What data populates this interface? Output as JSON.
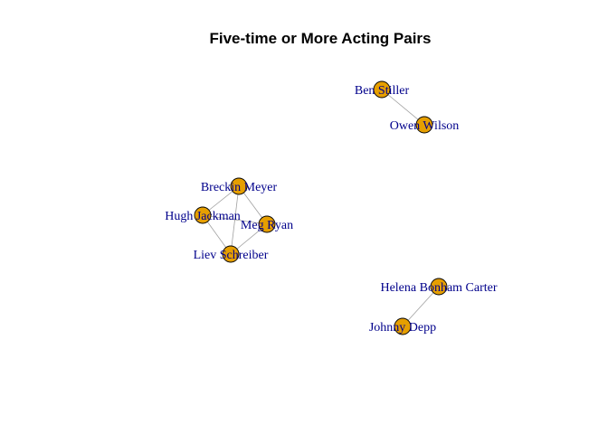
{
  "title": "Five-time or More Acting Pairs",
  "colors": {
    "node_fill": "#E69F00",
    "node_stroke": "#000000",
    "edge": "#a0a0a0",
    "label": "#00008B",
    "title": "#000000"
  },
  "nodes": [
    {
      "id": "ben-stiller",
      "label": "Ben Stiller"
    },
    {
      "id": "owen-wilson",
      "label": "Owen Wilson"
    },
    {
      "id": "breckin-meyer",
      "label": "Breckin Meyer"
    },
    {
      "id": "hugh-jackman",
      "label": "Hugh Jackman"
    },
    {
      "id": "meg-ryan",
      "label": "Meg Ryan"
    },
    {
      "id": "liev-schreiber",
      "label": "Liev Schreiber"
    },
    {
      "id": "helena-bonham-carter",
      "label": "Helena Bonham Carter"
    },
    {
      "id": "johnny-depp",
      "label": "Johnny Depp"
    }
  ],
  "edges": [
    [
      "ben-stiller",
      "owen-wilson"
    ],
    [
      "breckin-meyer",
      "hugh-jackman"
    ],
    [
      "breckin-meyer",
      "meg-ryan"
    ],
    [
      "breckin-meyer",
      "liev-schreiber"
    ],
    [
      "hugh-jackman",
      "meg-ryan"
    ],
    [
      "hugh-jackman",
      "liev-schreiber"
    ],
    [
      "meg-ryan",
      "liev-schreiber"
    ],
    [
      "helena-bonham-carter",
      "johnny-depp"
    ]
  ]
}
